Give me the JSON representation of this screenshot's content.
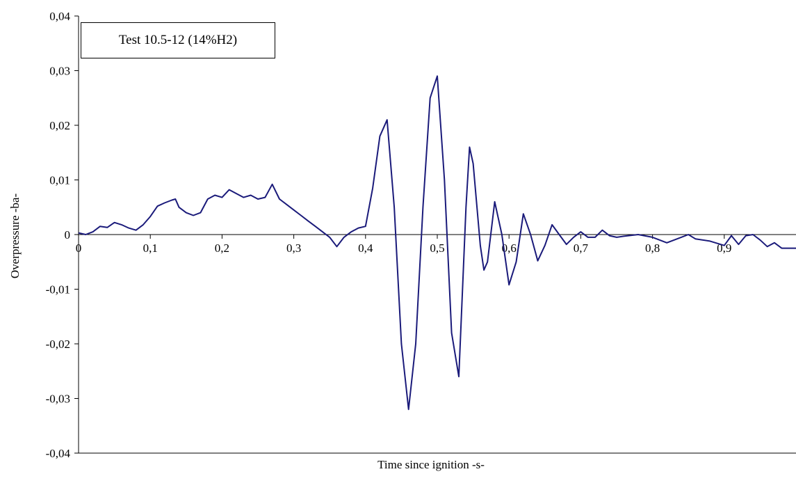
{
  "chart_data": {
    "type": "line",
    "title": "",
    "xlabel": "Time since ignition -s-",
    "ylabel": "Overpressure -ba-",
    "xlim": [
      0,
      1.0
    ],
    "ylim": [
      -0.04,
      0.04
    ],
    "x_ticks": [
      0,
      0.1,
      0.2,
      0.3,
      0.4,
      0.5,
      0.6,
      0.7,
      0.8,
      0.9
    ],
    "x_tick_labels": [
      "0",
      "0,1",
      "0,2",
      "0,3",
      "0,4",
      "0,5",
      "0,6",
      "0,7",
      "0,8",
      "0,9"
    ],
    "y_ticks": [
      0.04,
      0.03,
      0.02,
      0.01,
      0,
      -0.01,
      -0.02,
      -0.03,
      -0.04
    ],
    "y_tick_labels": [
      "0,04",
      "0,03",
      "0,02",
      "0,01",
      "0",
      "-0,01",
      "-0,02",
      "-0,03",
      "-0,04"
    ],
    "grid": false,
    "legend_box_text": "Test 10.5-12 (14%H2)",
    "legend_placement": "top-left",
    "line_color": "#1a1a7a",
    "series": [
      {
        "x": [
          0,
          0.01,
          0.02,
          0.03,
          0.04,
          0.05,
          0.06,
          0.07,
          0.08,
          0.09,
          0.1,
          0.11,
          0.12,
          0.13,
          0.135,
          0.14,
          0.15,
          0.16,
          0.17,
          0.18,
          0.19,
          0.2,
          0.21,
          0.22,
          0.23,
          0.24,
          0.25,
          0.26,
          0.27,
          0.28,
          0.29,
          0.3,
          0.31,
          0.32,
          0.33,
          0.34,
          0.35,
          0.36,
          0.37,
          0.38,
          0.39,
          0.4,
          0.41,
          0.42,
          0.43,
          0.44,
          0.45,
          0.46,
          0.47,
          0.48,
          0.49,
          0.5,
          0.51,
          0.52,
          0.53,
          0.54,
          0.545,
          0.55,
          0.56,
          0.565,
          0.57,
          0.58,
          0.59,
          0.6,
          0.61,
          0.62,
          0.63,
          0.64,
          0.65,
          0.66,
          0.67,
          0.68,
          0.69,
          0.7,
          0.71,
          0.72,
          0.73,
          0.74,
          0.75,
          0.76,
          0.78,
          0.8,
          0.82,
          0.84,
          0.85,
          0.86,
          0.88,
          0.9,
          0.91,
          0.92,
          0.93,
          0.94,
          0.95,
          0.96,
          0.97,
          0.98,
          0.99,
          1.0
        ],
        "y": [
          0.0003,
          0.0,
          0.0005,
          0.0015,
          0.0013,
          0.0022,
          0.0018,
          0.0012,
          0.0008,
          0.0018,
          0.0033,
          0.0052,
          0.0058,
          0.0063,
          0.0065,
          0.005,
          0.004,
          0.0035,
          0.004,
          0.0065,
          0.0072,
          0.0068,
          0.0082,
          0.0075,
          0.0068,
          0.0072,
          0.0065,
          0.0068,
          0.0092,
          0.0065,
          0.0055,
          0.0045,
          0.0035,
          0.0025,
          0.0015,
          0.0005,
          -0.0005,
          -0.0022,
          -0.0005,
          0.0005,
          0.0012,
          0.0015,
          0.0085,
          0.018,
          0.021,
          0.005,
          -0.02,
          -0.032,
          -0.02,
          0.005,
          0.025,
          0.029,
          0.01,
          -0.018,
          -0.026,
          0.005,
          0.016,
          0.013,
          -0.002,
          -0.0065,
          -0.005,
          0.006,
          0.0,
          -0.0092,
          -0.005,
          0.0038,
          0.0,
          -0.0048,
          -0.002,
          0.0018,
          0.0,
          -0.0018,
          -0.0005,
          0.0005,
          -0.0005,
          -0.0005,
          0.0008,
          -0.0002,
          -0.0005,
          -0.0003,
          0.0,
          -0.0005,
          -0.0015,
          -0.0005,
          0.0,
          -0.0008,
          -0.0012,
          -0.002,
          -0.0002,
          -0.0018,
          -0.0002,
          0.0,
          -0.001,
          -0.0022,
          -0.0015,
          -0.0025,
          -0.0025,
          -0.0025
        ]
      }
    ]
  }
}
